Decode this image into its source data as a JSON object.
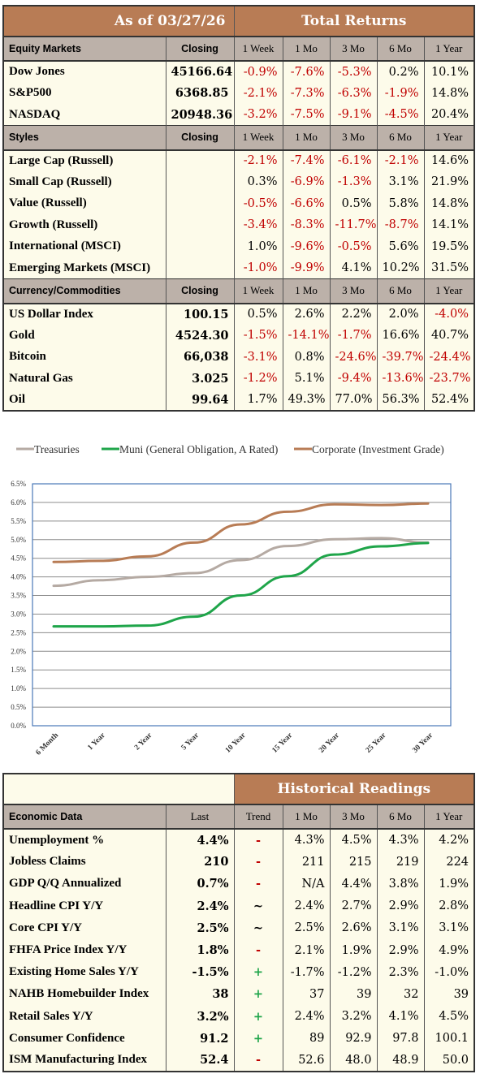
{
  "returns": {
    "as_of": "As of  03/27/26",
    "total_returns": "Total Returns",
    "columns": [
      "Closing",
      "1 Week",
      "1 Mo",
      "3 Mo",
      "6 Mo",
      "1 Year"
    ],
    "sections": [
      {
        "label": "Equity Markets",
        "rows": [
          {
            "name": "Dow Jones",
            "closing": "45166.64",
            "vals": [
              "-0.9%",
              "-7.6%",
              "-5.3%",
              "0.2%",
              "10.1%"
            ]
          },
          {
            "name": "S&P500",
            "closing": "6368.85",
            "vals": [
              "-2.1%",
              "-7.3%",
              "-6.3%",
              "-1.9%",
              "14.8%"
            ]
          },
          {
            "name": "NASDAQ",
            "closing": "20948.36",
            "vals": [
              "-3.2%",
              "-7.5%",
              "-9.1%",
              "-4.5%",
              "20.4%"
            ]
          }
        ]
      },
      {
        "label": "Styles",
        "rows": [
          {
            "name": "Large Cap (Russell)",
            "closing": "",
            "vals": [
              "-2.1%",
              "-7.4%",
              "-6.1%",
              "-2.1%",
              "14.6%"
            ]
          },
          {
            "name": "Small Cap (Russell)",
            "closing": "",
            "vals": [
              "0.3%",
              "-6.9%",
              "-1.3%",
              "3.1%",
              "21.9%"
            ]
          },
          {
            "name": "Value (Russell)",
            "closing": "",
            "vals": [
              "-0.5%",
              "-6.6%",
              "0.5%",
              "5.8%",
              "14.8%"
            ]
          },
          {
            "name": "Growth (Russell)",
            "closing": "",
            "vals": [
              "-3.4%",
              "-8.3%",
              "-11.7%",
              "-8.7%",
              "14.1%"
            ]
          },
          {
            "name": "International (MSCI)",
            "closing": "",
            "vals": [
              "1.0%",
              "-9.6%",
              "-0.5%",
              "5.6%",
              "19.5%"
            ]
          },
          {
            "name": "Emerging Markets (MSCI)",
            "closing": "",
            "vals": [
              "-1.0%",
              "-9.9%",
              "4.1%",
              "10.2%",
              "31.5%"
            ]
          }
        ]
      },
      {
        "label": "Currency/Commodities",
        "rows": [
          {
            "name": "US Dollar Index",
            "closing": "100.15",
            "vals": [
              "0.5%",
              "2.6%",
              "2.2%",
              "2.0%",
              "-4.0%"
            ]
          },
          {
            "name": "Gold",
            "closing": "4524.30",
            "vals": [
              "-1.5%",
              "-14.1%",
              "-1.7%",
              "16.6%",
              "40.7%"
            ]
          },
          {
            "name": "Bitcoin",
            "closing": "66,038",
            "vals": [
              "-3.1%",
              "0.8%",
              "-24.6%",
              "-39.7%",
              "-24.4%"
            ]
          },
          {
            "name": "Natural Gas",
            "closing": "3.025",
            "vals": [
              "-1.2%",
              "5.1%",
              "-9.4%",
              "-13.6%",
              "-23.7%"
            ]
          },
          {
            "name": "Oil",
            "closing": "99.64",
            "vals": [
              "1.7%",
              "49.3%",
              "77.0%",
              "56.3%",
              "52.4%"
            ]
          }
        ]
      }
    ]
  },
  "chart_data": {
    "type": "line",
    "categories": [
      "6 Month",
      "1 Year",
      "2 Year",
      "5 Year",
      "10 Year",
      "15 Year",
      "20 Year",
      "25 Year",
      "30 Year"
    ],
    "series": [
      {
        "name": "Treasuries",
        "color": "#b5aaa3",
        "values": [
          3.76,
          3.91,
          4.0,
          4.1,
          4.45,
          4.83,
          5.01,
          5.04,
          4.92
        ]
      },
      {
        "name": "Muni (General Obligation, A Rated)",
        "color": "#1fa54a",
        "values": [
          2.67,
          2.67,
          2.69,
          2.93,
          3.5,
          4.02,
          4.6,
          4.82,
          4.91
        ]
      },
      {
        "name": "Corporate (Investment Grade)",
        "color": "#b87c55",
        "values": [
          4.4,
          4.43,
          4.55,
          4.92,
          5.41,
          5.75,
          5.95,
          5.93,
          5.97
        ]
      }
    ],
    "ylim": [
      0,
      6.5
    ],
    "yticks": [
      "0.0%",
      "0.5%",
      "1.0%",
      "1.5%",
      "2.0%",
      "2.5%",
      "3.0%",
      "3.5%",
      "4.0%",
      "4.5%",
      "5.0%",
      "5.5%",
      "6.0%",
      "6.5%"
    ],
    "legend": "top",
    "grid": true
  },
  "economic": {
    "historical_readings": "Historical Readings",
    "label": "Economic Data",
    "columns": [
      "Last",
      "Trend",
      "1 Mo",
      "3 Mo",
      "6 Mo",
      "1 Year"
    ],
    "rows": [
      {
        "name": "Unemployment %",
        "last": "4.4%",
        "trend": "-",
        "trend_color": "#c00000",
        "vals": [
          "4.3%",
          "4.5%",
          "4.3%",
          "4.2%"
        ]
      },
      {
        "name": "Jobless Claims",
        "last": "210",
        "trend": "-",
        "trend_color": "#c00000",
        "vals": [
          "211",
          "215",
          "219",
          "224"
        ]
      },
      {
        "name": "GDP Q/Q Annualized",
        "last": "0.7%",
        "trend": "-",
        "trend_color": "#c00000",
        "vals": [
          "N/A",
          "4.4%",
          "3.8%",
          "1.9%"
        ]
      },
      {
        "name": "Headline CPI Y/Y",
        "last": "2.4%",
        "trend": "~",
        "trend_color": "#000000",
        "vals": [
          "2.4%",
          "2.7%",
          "2.9%",
          "2.8%"
        ]
      },
      {
        "name": "Core CPI Y/Y",
        "last": "2.5%",
        "trend": "~",
        "trend_color": "#000000",
        "vals": [
          "2.5%",
          "2.6%",
          "3.1%",
          "3.1%"
        ]
      },
      {
        "name": "FHFA Price Index Y/Y",
        "last": "1.8%",
        "trend": "-",
        "trend_color": "#c00000",
        "vals": [
          "2.1%",
          "1.9%",
          "2.9%",
          "4.9%"
        ]
      },
      {
        "name": "Existing Home Sales Y/Y",
        "last": "-1.5%",
        "trend": "+",
        "trend_color": "#1fa54a",
        "vals": [
          "-1.7%",
          "-1.2%",
          "2.3%",
          "-1.0%"
        ]
      },
      {
        "name": "NAHB Homebuilder Index",
        "last": "38",
        "trend": "+",
        "trend_color": "#1fa54a",
        "vals": [
          "37",
          "39",
          "32",
          "39"
        ]
      },
      {
        "name": "Retail Sales Y/Y",
        "last": "3.2%",
        "trend": "+",
        "trend_color": "#1fa54a",
        "vals": [
          "2.4%",
          "3.2%",
          "4.1%",
          "4.5%"
        ]
      },
      {
        "name": "Consumer Confidence",
        "last": "91.2",
        "trend": "+",
        "trend_color": "#1fa54a",
        "vals": [
          "89",
          "92.9",
          "97.8",
          "100.1"
        ]
      },
      {
        "name": "ISM Manufacturing Index",
        "last": "52.4",
        "trend": "-",
        "trend_color": "#c00000",
        "vals": [
          "52.6",
          "48.0",
          "48.9",
          "50.0"
        ]
      }
    ]
  }
}
